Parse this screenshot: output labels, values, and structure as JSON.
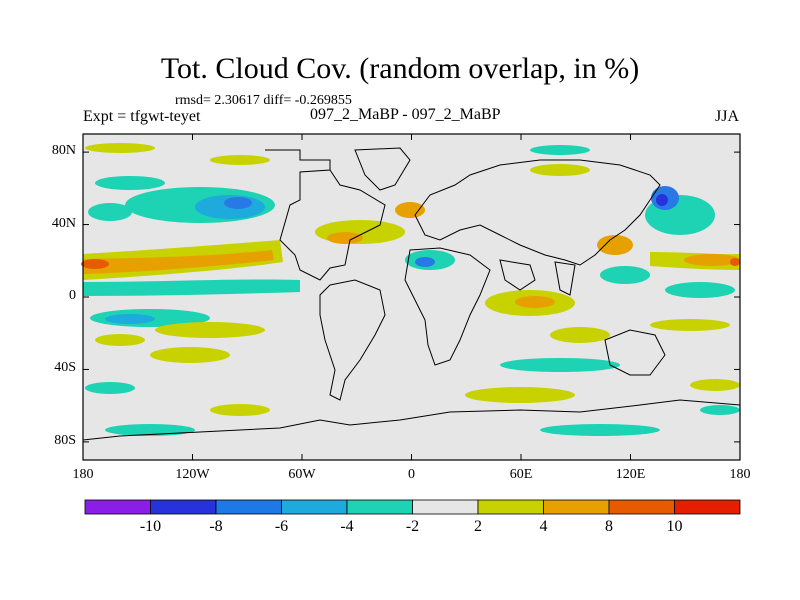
{
  "header": {
    "title": "Tot. Cloud Cov. (random overlap, in %)",
    "stats": "rmsd= 2.30617 diff= -0.269855",
    "experiment": "Expt = tfgwt-teyet",
    "case": "097_2_MaBP - 097_2_MaBP",
    "season": "JJA"
  },
  "map": {
    "lat_labels": [
      "80N",
      "40N",
      "0",
      "40S",
      "80S"
    ],
    "lat_values": [
      80,
      40,
      0,
      -40,
      -80
    ],
    "lon_labels": [
      "180",
      "120W",
      "60W",
      "0",
      "60E",
      "120E",
      "180"
    ],
    "lon_values": [
      -180,
      -120,
      -60,
      0,
      60,
      120,
      180
    ],
    "lon_range": [
      -180,
      180
    ],
    "lat_range": [
      -90,
      90
    ],
    "background_color": "#e6e6e6"
  },
  "colorbar": {
    "labels": [
      "-10",
      "-8",
      "-6",
      "-4",
      "-2",
      "2",
      "4",
      "8",
      "10"
    ],
    "colors": [
      "#8a1ee6",
      "#2832dc",
      "#1e78e6",
      "#1eaadc",
      "#1ed2b4",
      "#e6e6e6",
      "#c8d200",
      "#e6a000",
      "#e65a00",
      "#e61e00"
    ]
  }
}
